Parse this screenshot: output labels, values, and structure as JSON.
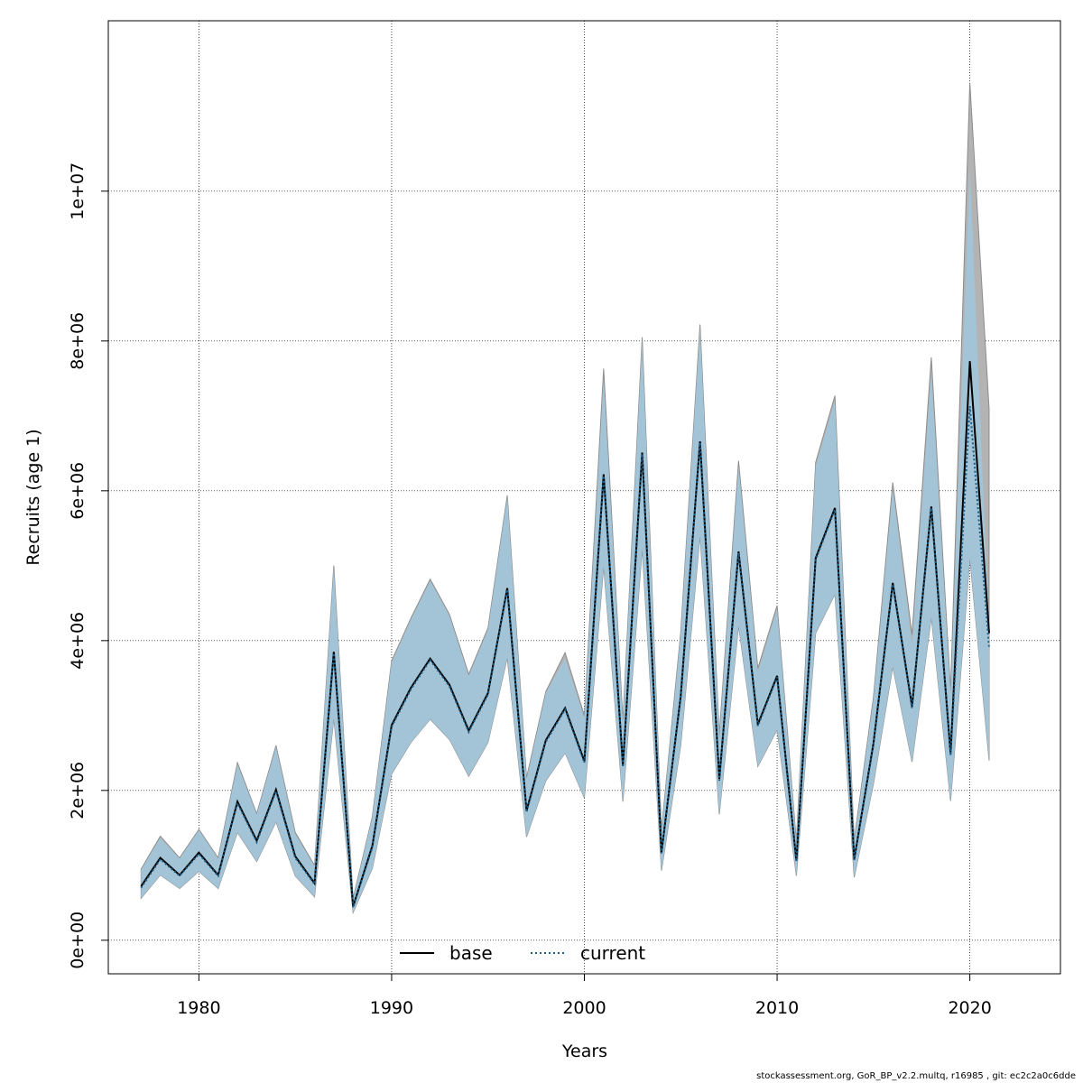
{
  "colors": {
    "base_band": "#b3b3b3",
    "base_band_edge": "#8c8c8c",
    "current_band": "#a3c4d6",
    "base_line": "#000000",
    "current_line": "#1a5f8a"
  },
  "chart_data": {
    "type": "line",
    "title": "",
    "xlabel": "Years",
    "ylabel": "Recruits (age 1)",
    "xlim": [
      1975.3,
      2024.7
    ],
    "ylim": [
      -448000,
      12275000
    ],
    "x_ticks": [
      1980,
      1990,
      2000,
      2010,
      2020
    ],
    "x_tick_labels": [
      "1980",
      "1990",
      "2000",
      "2010",
      "2020"
    ],
    "y_ticks": [
      0,
      2000000,
      4000000,
      6000000,
      8000000,
      10000000
    ],
    "y_tick_labels": [
      "0e+00",
      "2e+06",
      "4e+06",
      "6e+06",
      "8e+06",
      "1e+07"
    ],
    "grid": true,
    "legend_position": "bottom-center",
    "years": [
      1977,
      1978,
      1979,
      1980,
      1981,
      1982,
      1983,
      1984,
      1985,
      1986,
      1987,
      1988,
      1989,
      1990,
      1991,
      1992,
      1993,
      1994,
      1995,
      1996,
      1997,
      1998,
      1999,
      2000,
      2001,
      2002,
      2003,
      2004,
      2005,
      2006,
      2007,
      2008,
      2009,
      2010,
      2011,
      2012,
      2013,
      2014,
      2015,
      2016,
      2017,
      2018,
      2019,
      2020,
      2021
    ],
    "series": [
      {
        "name": "base",
        "style": "solid",
        "values": [
          720000,
          1100000,
          870000,
          1170000,
          870000,
          1850000,
          1330000,
          2010000,
          1120000,
          760000,
          3850000,
          450000,
          1260000,
          2870000,
          3370000,
          3760000,
          3410000,
          2800000,
          3300000,
          4700000,
          1730000,
          2670000,
          3100000,
          2390000,
          6220000,
          2330000,
          6510000,
          1170000,
          3260000,
          6660000,
          2150000,
          5190000,
          2880000,
          3530000,
          1060000,
          5100000,
          5770000,
          1080000,
          2630000,
          4770000,
          3120000,
          5790000,
          2490000,
          7730000,
          4100000
        ],
        "lower": [
          560000,
          870000,
          690000,
          920000,
          690000,
          1440000,
          1050000,
          1580000,
          860000,
          580000,
          2960000,
          370000,
          960000,
          2220000,
          2640000,
          2950000,
          2680000,
          2190000,
          2640000,
          3770000,
          1380000,
          2130000,
          2500000,
          1900000,
          4990000,
          1850000,
          5230000,
          930000,
          2600000,
          5400000,
          1680000,
          4200000,
          2320000,
          2810000,
          860000,
          4100000,
          4620000,
          840000,
          2090000,
          3650000,
          2380000,
          4310000,
          1860000,
          5100000,
          2400000
        ],
        "upper": [
          950000,
          1390000,
          1100000,
          1480000,
          1100000,
          2370000,
          1690000,
          2600000,
          1440000,
          1000000,
          5000000,
          560000,
          1650000,
          3730000,
          4300000,
          4820000,
          4350000,
          3550000,
          4170000,
          5940000,
          2170000,
          3320000,
          3840000,
          3000000,
          7630000,
          2930000,
          8050000,
          1470000,
          4110000,
          8220000,
          2740000,
          6400000,
          3630000,
          4470000,
          1320000,
          6380000,
          7270000,
          1340000,
          3250000,
          6110000,
          4080000,
          7780000,
          3340000,
          11450000,
          7090000
        ]
      },
      {
        "name": "current",
        "style": "dotted",
        "values": [
          700000,
          1080000,
          860000,
          1150000,
          860000,
          1830000,
          1310000,
          1990000,
          1100000,
          750000,
          3830000,
          440000,
          1240000,
          2850000,
          3350000,
          3740000,
          3390000,
          2780000,
          3280000,
          4680000,
          1710000,
          2650000,
          3080000,
          2370000,
          6200000,
          2310000,
          6490000,
          1160000,
          3240000,
          6640000,
          2130000,
          5170000,
          2860000,
          3510000,
          1050000,
          5080000,
          5750000,
          1070000,
          2610000,
          4750000,
          3100000,
          5770000,
          2470000,
          7130000,
          3900000
        ],
        "lower": [
          560000,
          870000,
          690000,
          920000,
          690000,
          1440000,
          1050000,
          1580000,
          860000,
          580000,
          2960000,
          370000,
          960000,
          2220000,
          2640000,
          2950000,
          2680000,
          2190000,
          2640000,
          3770000,
          1380000,
          2130000,
          2500000,
          1900000,
          4990000,
          1850000,
          5230000,
          930000,
          2600000,
          5400000,
          1680000,
          4200000,
          2320000,
          2810000,
          860000,
          4100000,
          4620000,
          840000,
          2090000,
          3650000,
          2380000,
          4310000,
          1860000,
          5100000,
          2400000
        ],
        "upper": [
          940000,
          1370000,
          1090000,
          1470000,
          1090000,
          2350000,
          1680000,
          2580000,
          1420000,
          990000,
          4980000,
          550000,
          1640000,
          3710000,
          4280000,
          4800000,
          4330000,
          3530000,
          4150000,
          5920000,
          2150000,
          3300000,
          3760000,
          2960000,
          7500000,
          2900000,
          8000000,
          1450000,
          4080000,
          8180000,
          2700000,
          6330000,
          3580000,
          4420000,
          1300000,
          6330000,
          7200000,
          1320000,
          3220000,
          6030000,
          3950000,
          7600000,
          3280000,
          10300000,
          4100000
        ]
      }
    ],
    "legend": [
      "base",
      "current"
    ]
  },
  "footer": {
    "text": "stockassessment.org, GoR_BP_v2.2.multq, r16985 , git: ec2c2a0c6dde"
  }
}
